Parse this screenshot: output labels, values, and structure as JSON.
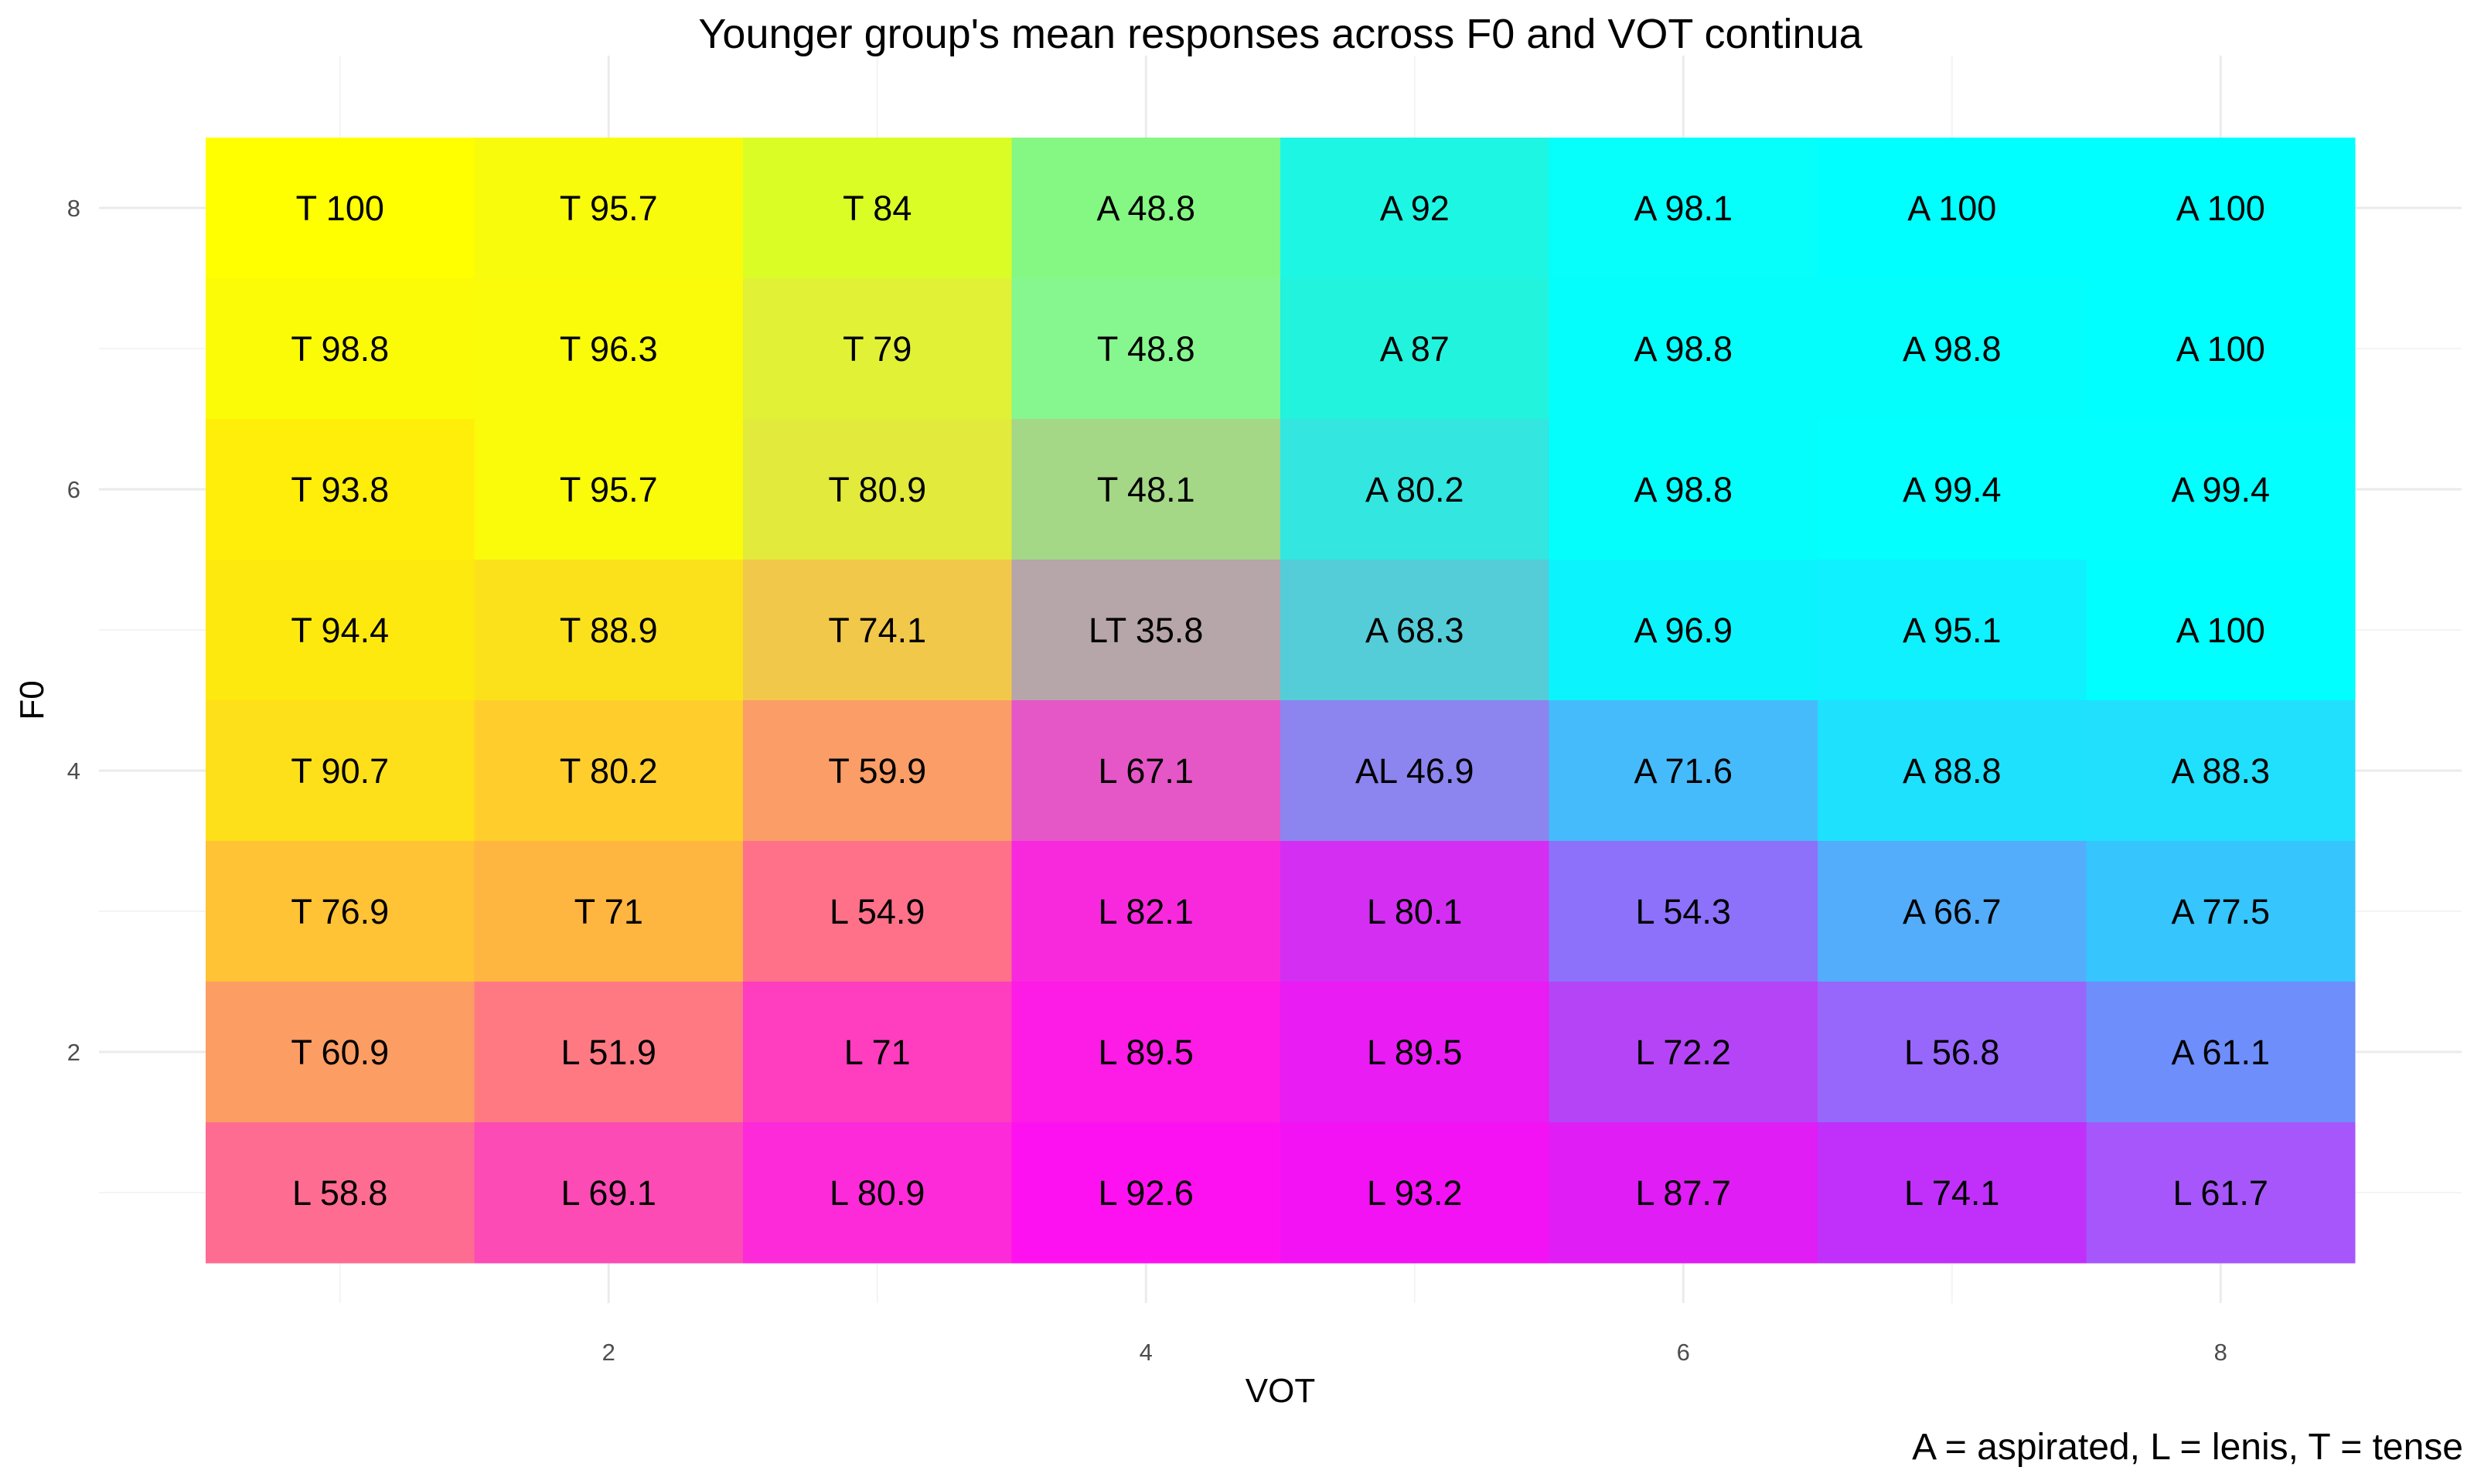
{
  "chart_data": {
    "type": "heatmap",
    "title": "Younger group's mean responses across F0 and VOT continua",
    "xlabel": "VOT",
    "ylabel": "F0",
    "caption": "A = aspirated, L = lenis, T = tense",
    "xlim": [
      0.5,
      8.5
    ],
    "ylim": [
      0.5,
      8.5
    ],
    "x_ticks": [
      2,
      4,
      6,
      8
    ],
    "y_ticks": [
      2,
      4,
      6,
      8
    ],
    "grid": true,
    "legend": "none",
    "x": [
      1,
      2,
      3,
      4,
      5,
      6,
      7,
      8
    ],
    "y": [
      8,
      7,
      6,
      5,
      4,
      3,
      2,
      1
    ],
    "labels": [
      [
        "T 100",
        "T 95.7",
        "T 84",
        "A 48.8",
        "A 92",
        "A 98.1",
        "A 100",
        "A 100"
      ],
      [
        "T 98.8",
        "T 96.3",
        "T 79",
        "T 48.8",
        "A 87",
        "A 98.8",
        "A 98.8",
        "A 100"
      ],
      [
        "T 93.8",
        "T 95.7",
        "T 80.9",
        "T 48.1",
        "A 80.2",
        "A 98.8",
        "A 99.4",
        "A 99.4"
      ],
      [
        "T 94.4",
        "T 88.9",
        "T 74.1",
        "LT 35.8",
        "A 68.3",
        "A 96.9",
        "A 95.1",
        "A 100"
      ],
      [
        "T 90.7",
        "T 80.2",
        "T 59.9",
        "L 67.1",
        "AL 46.9",
        "A 71.6",
        "A 88.8",
        "A 88.3"
      ],
      [
        "T 76.9",
        "T 71",
        "L 54.9",
        "L 82.1",
        "L 80.1",
        "L 54.3",
        "A 66.7",
        "A 77.5"
      ],
      [
        "T 60.9",
        "L 51.9",
        "L 71",
        "L 89.5",
        "L 89.5",
        "L 72.2",
        "L 56.8",
        "A 61.1"
      ],
      [
        "L 58.8",
        "L 69.1",
        "L 80.9",
        "L 92.6",
        "L 93.2",
        "L 87.7",
        "L 74.1",
        "L 61.7"
      ]
    ],
    "colors": [
      [
        "#ffff00",
        "#f9fb0c",
        "#dafd26",
        "#85f883",
        "#1ef6e4",
        "#06fefb",
        "#00ffff",
        "#00ffff"
      ],
      [
        "#fbfb07",
        "#f9fb0b",
        "#e1f136",
        "#86f78e",
        "#22f3dd",
        "#04fefc",
        "#04fefc",
        "#00ffff"
      ],
      [
        "#ffee09",
        "#f9fb0b",
        "#e2ea3b",
        "#a4d786",
        "#33e6e0",
        "#04fefc",
        "#03fffe",
        "#03fffe"
      ],
      [
        "#fee90e",
        "#fbe11c",
        "#f2c84a",
        "#b6a5a9",
        "#54cdd9",
        "#0bf4fe",
        "#0ff1fe",
        "#00ffff"
      ],
      [
        "#fee01a",
        "#ffce2c",
        "#fa9d66",
        "#e557c7",
        "#8c84ef",
        "#46bbfb",
        "#1ee1fd",
        "#20e0fd"
      ],
      [
        "#ffc335",
        "#ffb641",
        "#fe7189",
        "#f829dd",
        "#d42ef3",
        "#8d71fa",
        "#53adfb",
        "#36c5fd"
      ],
      [
        "#fc9d64",
        "#ff7983",
        "#fe3dbf",
        "#fd1be6",
        "#e81cf3",
        "#b544f7",
        "#9766fb",
        "#6d8efb"
      ],
      [
        "#fe6c91",
        "#fc4bb5",
        "#fc2ad8",
        "#fe11f0",
        "#f212f4",
        "#df1df4",
        "#c030fa",
        "#a656fb"
      ]
    ]
  }
}
